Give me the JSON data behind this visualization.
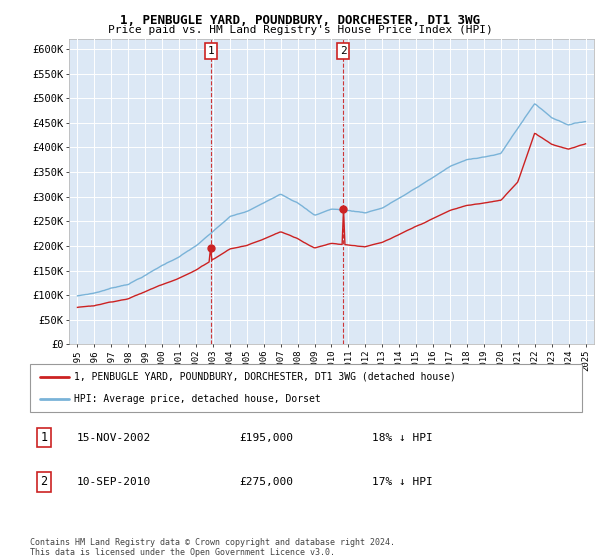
{
  "title": "1, PENBUGLE YARD, POUNDBURY, DORCHESTER, DT1 3WG",
  "subtitle": "Price paid vs. HM Land Registry's House Price Index (HPI)",
  "ylabel_ticks": [
    "£0",
    "£50K",
    "£100K",
    "£150K",
    "£200K",
    "£250K",
    "£300K",
    "£350K",
    "£400K",
    "£450K",
    "£500K",
    "£550K",
    "£600K"
  ],
  "ylim": [
    0,
    620000
  ],
  "ytick_vals": [
    0,
    50000,
    100000,
    150000,
    200000,
    250000,
    300000,
    350000,
    400000,
    450000,
    500000,
    550000,
    600000
  ],
  "x_start_year": 1995,
  "x_end_year": 2025,
  "purchase1_year": 2002.88,
  "purchase1_price": 195000,
  "purchase1_label": "1",
  "purchase1_date": "15-NOV-2002",
  "purchase1_hpi_diff": "18% ↓ HPI",
  "purchase2_year": 2010.69,
  "purchase2_price": 275000,
  "purchase2_label": "2",
  "purchase2_date": "10-SEP-2010",
  "purchase2_hpi_diff": "17% ↓ HPI",
  "legend_property": "1, PENBUGLE YARD, POUNDBURY, DORCHESTER, DT1 3WG (detached house)",
  "legend_hpi": "HPI: Average price, detached house, Dorset",
  "footer": "Contains HM Land Registry data © Crown copyright and database right 2024.\nThis data is licensed under the Open Government Licence v3.0.",
  "hpi_color": "#7ab3d8",
  "price_color": "#cc2222",
  "bg_plot_color": "#dce8f5",
  "grid_color": "#ffffff",
  "dashed_line_color": "#cc2222",
  "hpi_years": [
    1995,
    1996,
    1997,
    1998,
    1999,
    2000,
    2001,
    2002,
    2003,
    2004,
    2005,
    2006,
    2007,
    2008,
    2009,
    2010,
    2011,
    2012,
    2013,
    2014,
    2015,
    2016,
    2017,
    2018,
    2019,
    2020,
    2021,
    2022,
    2023,
    2024,
    2025
  ],
  "hpi_values": [
    97000,
    103000,
    113000,
    122000,
    140000,
    160000,
    178000,
    200000,
    228000,
    258000,
    268000,
    285000,
    305000,
    288000,
    262000,
    275000,
    272000,
    268000,
    278000,
    298000,
    318000,
    340000,
    362000,
    375000,
    382000,
    388000,
    440000,
    490000,
    462000,
    448000,
    455000
  ],
  "red_values": [
    72000,
    76000,
    84000,
    91000,
    105000,
    120000,
    134000,
    150000,
    172000,
    194000,
    201000,
    214000,
    229000,
    216000,
    197000,
    207000,
    204000,
    201000,
    209000,
    224000,
    240000,
    256000,
    272000,
    282000,
    287000,
    292000,
    330000,
    430000,
    408000,
    398000,
    408000
  ]
}
